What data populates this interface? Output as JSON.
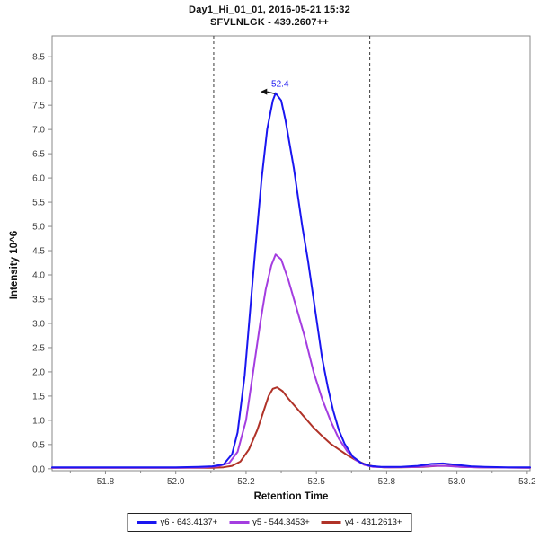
{
  "title": {
    "line1": "Day1_Hi_01_01, 2016-05-21 15:32",
    "line2": "SFVLNLGK - 439.2607++"
  },
  "chart_data": {
    "type": "line",
    "title": "Day1_Hi_01_01, 2016-05-21 15:32",
    "subtitle": "SFVLNLGK - 439.2607++",
    "xlabel": "Retention Time",
    "ylabel": "Intensity 10^6",
    "xlim": [
      51.56,
      53.26
    ],
    "ylim": [
      -0.04,
      8.93
    ],
    "grid": false,
    "legend_position": "bottom",
    "axis_color": "#8a8a8a",
    "tick_label_color": "#3d3d3d",
    "boundary_line_color": "#3a3a3a",
    "annotation_arrow_color": "#111111",
    "x_ticks": {
      "values": [
        51.75,
        52.0,
        52.25,
        52.5,
        52.75,
        53.0,
        53.25
      ],
      "labels": [
        "51.8",
        "52.0",
        "52.2",
        "52.5",
        "52.8",
        "53.0",
        "53.2"
      ]
    },
    "x_minor_ticks": [
      51.625,
      51.875,
      52.125,
      52.375,
      52.625,
      52.875,
      53.125
    ],
    "y_ticks": {
      "values": [
        0,
        0.5,
        1.0,
        1.5,
        2.0,
        2.5,
        3.0,
        3.5,
        4.0,
        4.5,
        5.0,
        5.5,
        6.0,
        6.5,
        7.0,
        7.5,
        8.0,
        8.5
      ],
      "labels": [
        "0.0",
        "0.5",
        "1.0",
        "1.5",
        "2.0",
        "2.5",
        "3.0",
        "3.5",
        "4.0",
        "4.5",
        "5.0",
        "5.5",
        "6.0",
        "6.5",
        "7.0",
        "7.5",
        "8.0",
        "8.5"
      ]
    },
    "peak_boundaries": [
      52.135,
      52.69
    ],
    "peak_annotation": {
      "text": "52.4",
      "rt": 52.355,
      "intensity": 7.75
    },
    "series": [
      {
        "name": "y6 - 643.4137+",
        "color": "#1a16f0",
        "points": [
          [
            51.56,
            0.03
          ],
          [
            51.8,
            0.03
          ],
          [
            52.0,
            0.03
          ],
          [
            52.08,
            0.04
          ],
          [
            52.13,
            0.05
          ],
          [
            52.17,
            0.09
          ],
          [
            52.2,
            0.3
          ],
          [
            52.22,
            0.75
          ],
          [
            52.245,
            1.93
          ],
          [
            52.28,
            4.33
          ],
          [
            52.305,
            5.96
          ],
          [
            52.325,
            7.0
          ],
          [
            52.345,
            7.6
          ],
          [
            52.355,
            7.75
          ],
          [
            52.375,
            7.6
          ],
          [
            52.39,
            7.2
          ],
          [
            52.42,
            6.2
          ],
          [
            52.45,
            5.0
          ],
          [
            52.47,
            4.3
          ],
          [
            52.5,
            3.1
          ],
          [
            52.52,
            2.3
          ],
          [
            52.54,
            1.7
          ],
          [
            52.56,
            1.2
          ],
          [
            52.58,
            0.8
          ],
          [
            52.6,
            0.52
          ],
          [
            52.63,
            0.25
          ],
          [
            52.66,
            0.12
          ],
          [
            52.69,
            0.06
          ],
          [
            52.73,
            0.04
          ],
          [
            52.8,
            0.04
          ],
          [
            52.86,
            0.06
          ],
          [
            52.91,
            0.1
          ],
          [
            52.95,
            0.11
          ],
          [
            53.0,
            0.08
          ],
          [
            53.05,
            0.05
          ],
          [
            53.1,
            0.04
          ],
          [
            53.18,
            0.03
          ],
          [
            53.26,
            0.03
          ]
        ]
      },
      {
        "name": "y5 - 544.3453+",
        "color": "#a43de0",
        "points": [
          [
            51.56,
            0.02
          ],
          [
            52.0,
            0.02
          ],
          [
            52.1,
            0.03
          ],
          [
            52.15,
            0.05
          ],
          [
            52.19,
            0.12
          ],
          [
            52.22,
            0.35
          ],
          [
            52.25,
            1.0
          ],
          [
            52.275,
            2.0
          ],
          [
            52.3,
            3.0
          ],
          [
            52.32,
            3.7
          ],
          [
            52.34,
            4.2
          ],
          [
            52.355,
            4.42
          ],
          [
            52.375,
            4.32
          ],
          [
            52.4,
            3.9
          ],
          [
            52.43,
            3.3
          ],
          [
            52.46,
            2.7
          ],
          [
            52.49,
            2.0
          ],
          [
            52.52,
            1.45
          ],
          [
            52.55,
            1.0
          ],
          [
            52.58,
            0.62
          ],
          [
            52.61,
            0.36
          ],
          [
            52.64,
            0.18
          ],
          [
            52.67,
            0.08
          ],
          [
            52.7,
            0.04
          ],
          [
            52.76,
            0.03
          ],
          [
            52.86,
            0.04
          ],
          [
            52.92,
            0.06
          ],
          [
            52.96,
            0.06
          ],
          [
            53.01,
            0.04
          ],
          [
            53.08,
            0.03
          ],
          [
            53.26,
            0.02
          ]
        ]
      },
      {
        "name": "y4 - 431.2613+",
        "color": "#b03228",
        "points": [
          [
            51.56,
            0.02
          ],
          [
            52.05,
            0.02
          ],
          [
            52.13,
            0.02
          ],
          [
            52.17,
            0.03
          ],
          [
            52.2,
            0.06
          ],
          [
            52.23,
            0.15
          ],
          [
            52.26,
            0.4
          ],
          [
            52.29,
            0.8
          ],
          [
            52.31,
            1.15
          ],
          [
            52.33,
            1.5
          ],
          [
            52.345,
            1.65
          ],
          [
            52.36,
            1.68
          ],
          [
            52.38,
            1.6
          ],
          [
            52.4,
            1.45
          ],
          [
            52.43,
            1.25
          ],
          [
            52.46,
            1.05
          ],
          [
            52.49,
            0.85
          ],
          [
            52.52,
            0.68
          ],
          [
            52.55,
            0.52
          ],
          [
            52.58,
            0.4
          ],
          [
            52.61,
            0.28
          ],
          [
            52.64,
            0.18
          ],
          [
            52.67,
            0.1
          ],
          [
            52.7,
            0.05
          ],
          [
            52.74,
            0.03
          ],
          [
            52.8,
            0.03
          ],
          [
            52.88,
            0.04
          ],
          [
            52.93,
            0.06
          ],
          [
            52.97,
            0.06
          ],
          [
            53.02,
            0.04
          ],
          [
            53.08,
            0.03
          ],
          [
            53.26,
            0.02
          ]
        ]
      }
    ]
  }
}
